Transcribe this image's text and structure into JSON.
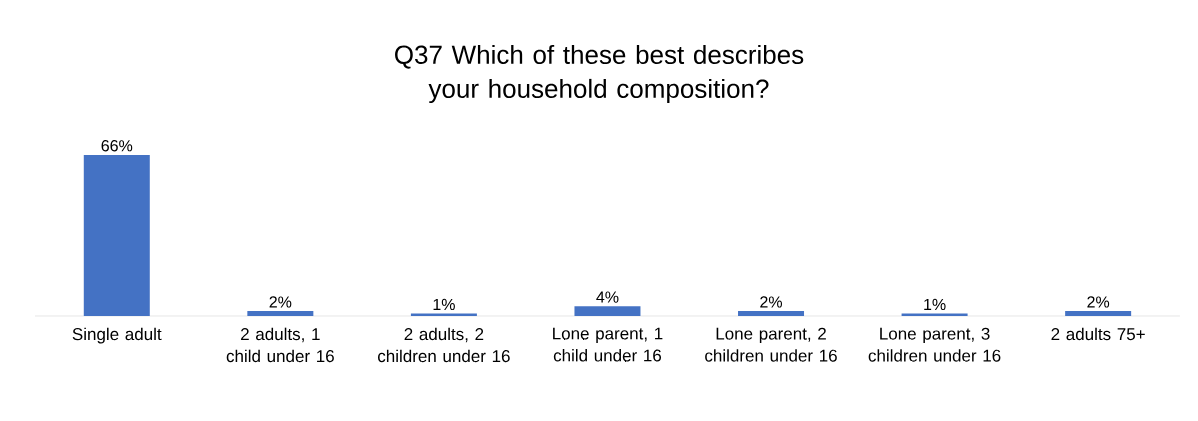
{
  "chart_data": {
    "type": "bar",
    "title": "Q37 Which of these best describes your household composition?",
    "categories": [
      "Single adult",
      "2 adults, 1 child under 16",
      "2 adults, 2 children under 16",
      "Lone parent, 1 child under 16",
      "Lone parent, 2 children under 16",
      "Lone parent, 3 children under 16",
      "2 adults 75+"
    ],
    "values": [
      66,
      2,
      1,
      4,
      2,
      1,
      2
    ],
    "color": "#4472c4",
    "value_labels": [
      "66%",
      "2%",
      "1%",
      "4%",
      "2%",
      "1%",
      "2%"
    ]
  }
}
